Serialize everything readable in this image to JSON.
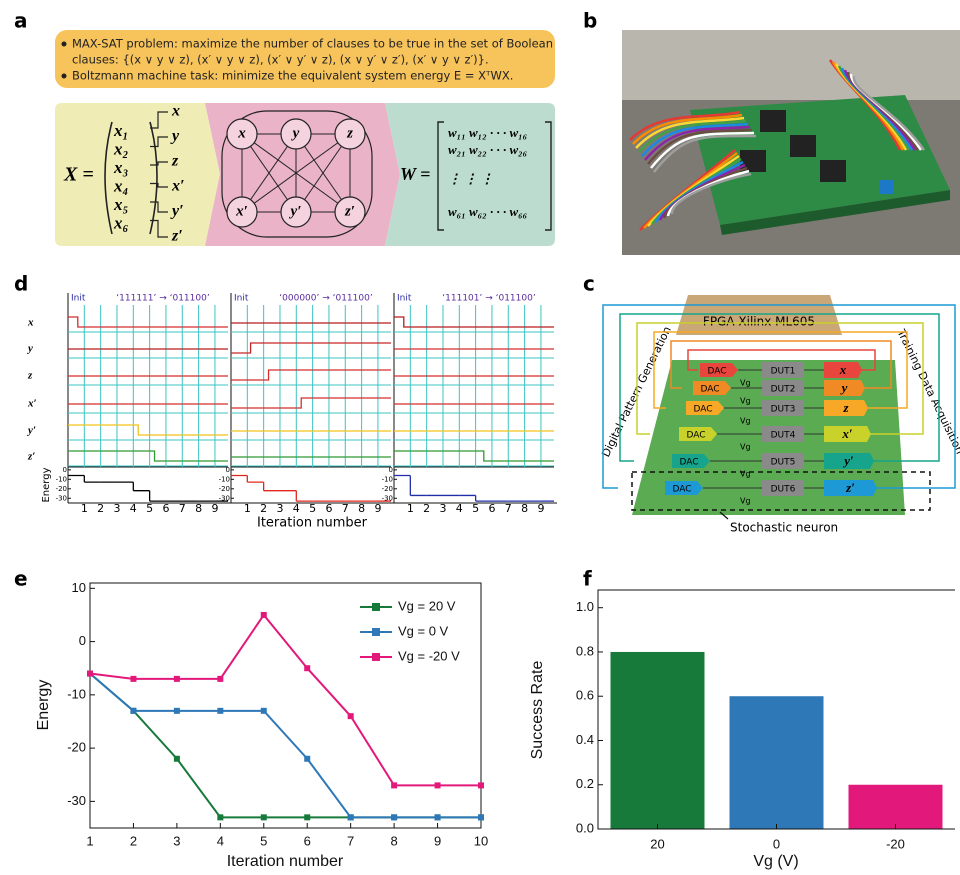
{
  "panel_labels": [
    "a",
    "b",
    "c",
    "d",
    "e",
    "f"
  ],
  "panel_a": {
    "bullets": [
      "MAX-SAT problem: maximize the number of clauses to be true in the set of Boolean",
      "clauses: {(x ∨ y ∨ z), (x′ ∨ y ∨ z), (x′ ∨ y′ ∨ z), (x ∨ y′ ∨ z′), (x′ ∨ y ∨ z′)}.",
      "Boltzmann machine task: minimize the equivalent system energy E = XᵀWX."
    ],
    "x_label": "X =",
    "x_entries": [
      "x₁",
      "x₂",
      "x₃",
      "x₄",
      "x₅",
      "x₆"
    ],
    "vars": [
      "x",
      "y",
      "z",
      "x′",
      "y′",
      "z′"
    ],
    "w_label": "W =",
    "w_rows": [
      "w₁₁   w₁₂ · · · w₁₆",
      "w₂₁   w₂₂ · · · w₂₆",
      "⋮        ⋮              ⋮",
      "w₆₁   w₆₂ · · · w₆₆"
    ]
  },
  "panel_c": {
    "fpga": "FPGA Xilinx ML605",
    "left_label": "Digital Pattern Generation",
    "right_label": "Training Data Acquisition",
    "dac": [
      "DAC",
      "DAC",
      "DAC",
      "DAC",
      "DAC",
      "DAC"
    ],
    "vg": [
      "Vg",
      "Vg",
      "Vg",
      "Vg",
      "Vg",
      "Vg"
    ],
    "dut": [
      "DUT1",
      "DUT2",
      "DUT3",
      "DUT4",
      "DUT5",
      "DUT6"
    ],
    "colors": [
      "#e8453c",
      "#f08a24",
      "#f7a826",
      "#c9d12b",
      "#16a58c",
      "#1d9ad6"
    ],
    "neuron": "Stochastic neuron"
  },
  "chart_data": [
    {
      "type": "line",
      "xlabel": "Iteration number",
      "ylabel": "Energy",
      "x": [
        1,
        2,
        3,
        4,
        5,
        6,
        7,
        8,
        9,
        10
      ],
      "series": [
        {
          "name": "Vg = 20 V",
          "color": "#177a3a",
          "values": [
            -6,
            -13,
            -22,
            -33,
            -33,
            -33,
            -33,
            -33,
            -33,
            -33
          ]
        },
        {
          "name": "Vg = 0 V",
          "color": "#2e78b7",
          "values": [
            -6,
            -13,
            -13,
            -13,
            -13,
            -22,
            -33,
            -33,
            -33,
            -33
          ]
        },
        {
          "name": "Vg = -20 V",
          "color": "#e2197b",
          "values": [
            -6,
            -7,
            -7,
            -7,
            5,
            -5,
            -14,
            -27,
            -27,
            -27
          ]
        }
      ],
      "xlim": [
        1,
        10
      ],
      "xticks": [
        1,
        2,
        3,
        4,
        5,
        6,
        7,
        8,
        9,
        10
      ],
      "ylim": [
        -35,
        11
      ],
      "yticks": [
        10,
        0,
        -10,
        -20,
        -30
      ],
      "legend": "upper right"
    },
    {
      "type": "bar",
      "xlabel": "Vg (V)",
      "ylabel": "Success Rate",
      "categories": [
        "20",
        "0",
        "-20"
      ],
      "values": [
        0.8,
        0.6,
        0.2
      ],
      "colors": [
        "#177a3a",
        "#2e78b7",
        "#e2197b"
      ],
      "ylim": [
        0,
        1.08
      ],
      "yticks": [
        {
          "value": 0,
          "label": "0.0"
        },
        {
          "value": 0.2,
          "label": "0.2"
        },
        {
          "value": 0.4,
          "label": "0.4"
        },
        {
          "value": 0.6,
          "label": "0.6"
        },
        {
          "value": 0.8,
          "label": "0.8"
        },
        {
          "value": 1,
          "label": "1.0"
        }
      ]
    },
    {
      "type": "timing",
      "xlabel": "Iteration number",
      "ylabel": "Energy",
      "x": [
        0,
        1,
        2,
        3,
        4,
        5,
        6,
        7,
        8,
        9
      ],
      "xlim": [
        0,
        9.8
      ],
      "xticks": [
        1,
        2,
        3,
        4,
        5,
        6,
        7,
        8,
        9
      ],
      "ylim": [
        -35,
        3
      ],
      "yticks": [
        0,
        -10,
        -20,
        -30
      ],
      "panels": [
        {
          "start": "Init",
          "title": "‘111111’ → ‘011100’",
          "color": "#000000",
          "values": [
            -6,
            -13,
            -13,
            -13,
            -22,
            -33,
            -33,
            -33,
            -33,
            -33
          ]
        },
        {
          "start": "Init",
          "title": "‘000000’ → ‘011100’",
          "color": "#e0261d",
          "values": [
            -6,
            -13,
            -22,
            -22,
            -33,
            -33,
            -33,
            -33,
            -33,
            -33
          ]
        },
        {
          "start": "Init",
          "title": "‘111101’ → ‘011100’",
          "color": "#1f2fa8",
          "values": [
            -6,
            -27,
            -27,
            -27,
            -27,
            -33,
            -33,
            -33,
            -33,
            -33
          ]
        }
      ]
    }
  ]
}
